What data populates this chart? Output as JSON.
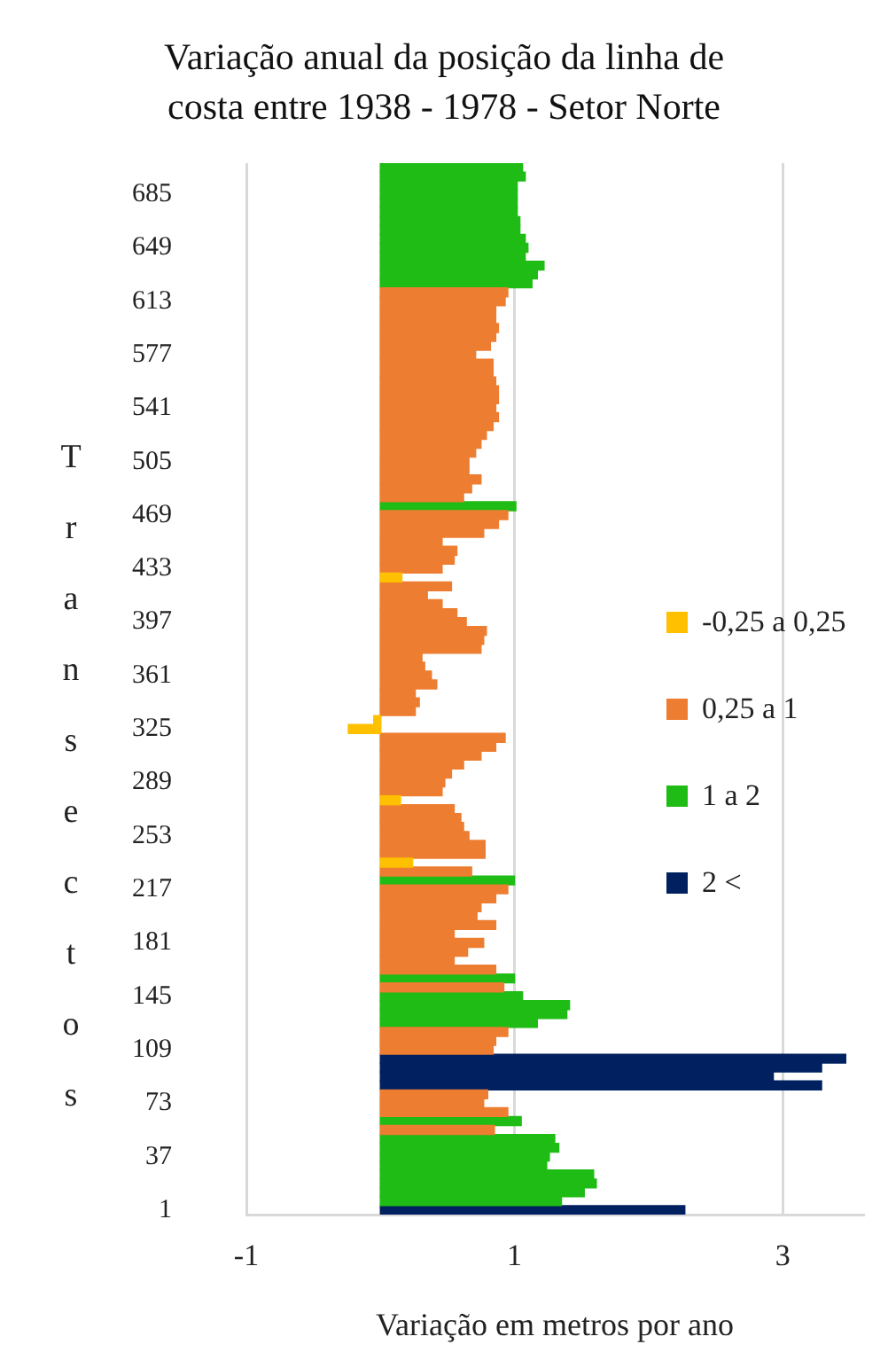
{
  "chart_data": {
    "type": "bar",
    "orientation": "horizontal",
    "stacked": true,
    "title": "Variação anual da posição da linha de costa entre 1938 - 1978 - Setor Norte",
    "xlabel": "Variação em metros por ano",
    "ylabel": "Transectos",
    "grid": "x",
    "legend": "right",
    "xlim": [
      -1,
      3.6
    ],
    "xticks": [
      -1,
      1,
      3
    ],
    "categories": [
      null,
      null,
      null,
      "685",
      null,
      null,
      null,
      null,
      null,
      "649",
      null,
      null,
      null,
      null,
      null,
      "613",
      null,
      null,
      null,
      null,
      null,
      "577",
      null,
      null,
      null,
      null,
      null,
      "541",
      null,
      null,
      null,
      null,
      null,
      "505",
      null,
      null,
      null,
      null,
      null,
      "469",
      null,
      null,
      null,
      null,
      null,
      "433",
      null,
      null,
      null,
      null,
      null,
      "397",
      null,
      null,
      null,
      null,
      null,
      "361",
      null,
      null,
      null,
      null,
      null,
      "325",
      null,
      null,
      null,
      null,
      null,
      "289",
      null,
      null,
      null,
      null,
      null,
      "253",
      null,
      null,
      null,
      null,
      null,
      "217",
      null,
      null,
      null,
      null,
      null,
      "181",
      null,
      null,
      null,
      null,
      null,
      "145",
      null,
      null,
      null,
      null,
      null,
      "109",
      null,
      null,
      null,
      null,
      null,
      "73",
      null,
      null,
      null,
      null,
      null,
      "37",
      null,
      null,
      null,
      null,
      null,
      "1"
    ],
    "series": [
      {
        "name": "-0,25 a 0,25",
        "color": "#ffc000",
        "values": [
          null,
          null,
          null,
          null,
          null,
          null,
          null,
          null,
          null,
          null,
          null,
          null,
          null,
          null,
          null,
          null,
          null,
          null,
          null,
          null,
          null,
          null,
          null,
          null,
          null,
          null,
          null,
          null,
          null,
          null,
          null,
          null,
          null,
          null,
          null,
          null,
          null,
          null,
          null,
          null,
          null,
          null,
          null,
          null,
          null,
          null,
          0.16,
          null,
          null,
          null,
          null,
          null,
          null,
          null,
          null,
          null,
          null,
          null,
          null,
          null,
          null,
          null,
          -0.05,
          -0.24,
          null,
          null,
          null,
          null,
          null,
          null,
          null,
          0.15,
          null,
          null,
          null,
          null,
          null,
          null,
          0.24,
          null,
          null,
          null,
          null,
          null,
          null,
          null,
          null,
          null,
          null,
          null,
          null,
          null,
          null,
          null,
          null,
          null,
          null,
          null,
          null,
          null,
          null,
          null,
          null,
          null,
          null,
          null,
          null,
          null,
          null,
          null,
          null,
          null,
          null,
          null,
          null,
          null,
          null,
          null
        ]
      },
      {
        "name": "0,25 a 1",
        "color": "#ed7d31",
        "values": [
          null,
          null,
          null,
          null,
          null,
          null,
          null,
          null,
          null,
          null,
          null,
          null,
          null,
          null,
          0.95,
          0.93,
          0.86,
          0.86,
          0.88,
          0.86,
          0.82,
          0.71,
          0.84,
          0.84,
          0.86,
          0.88,
          0.88,
          0.86,
          0.88,
          0.84,
          0.79,
          0.75,
          0.71,
          0.66,
          0.66,
          0.75,
          0.68,
          0.62,
          null,
          0.95,
          0.88,
          0.77,
          0.46,
          0.57,
          0.55,
          0.46,
          null,
          0.53,
          0.35,
          0.46,
          0.57,
          0.64,
          0.79,
          0.77,
          0.75,
          0.31,
          0.33,
          0.38,
          0.42,
          0.26,
          0.29,
          0.26,
          null,
          null,
          0.93,
          0.86,
          0.75,
          0.62,
          0.53,
          0.48,
          0.46,
          null,
          0.55,
          0.6,
          0.62,
          0.66,
          0.78,
          0.78,
          null,
          0.68,
          null,
          0.95,
          0.86,
          0.75,
          0.72,
          0.86,
          0.55,
          0.77,
          0.65,
          0.55,
          0.86,
          null,
          0.92,
          null,
          null,
          null,
          null,
          0.95,
          0.86,
          0.84,
          null,
          null,
          null,
          null,
          0.8,
          0.77,
          0.95,
          null,
          0.85,
          null,
          null,
          null,
          null,
          null,
          null,
          null,
          null,
          null
        ]
      },
      {
        "name": "1 a 2",
        "color": "#1ebc14",
        "values": [
          1.06,
          1.08,
          1.02,
          1.02,
          1.02,
          1.02,
          1.04,
          1.04,
          1.08,
          1.1,
          1.08,
          1.22,
          1.17,
          1.13,
          null,
          null,
          null,
          null,
          null,
          null,
          null,
          null,
          null,
          null,
          null,
          null,
          null,
          null,
          null,
          null,
          null,
          null,
          null,
          null,
          null,
          null,
          null,
          null,
          1.01,
          null,
          null,
          null,
          null,
          null,
          null,
          null,
          null,
          null,
          null,
          null,
          null,
          null,
          null,
          null,
          null,
          null,
          null,
          null,
          null,
          null,
          null,
          null,
          null,
          null,
          null,
          null,
          null,
          null,
          null,
          null,
          null,
          null,
          null,
          null,
          null,
          null,
          null,
          null,
          null,
          null,
          1.0,
          null,
          null,
          null,
          null,
          null,
          null,
          null,
          null,
          null,
          null,
          1.0,
          null,
          1.06,
          1.41,
          1.39,
          1.17,
          null,
          null,
          null,
          null,
          null,
          null,
          null,
          null,
          null,
          null,
          1.05,
          null,
          1.3,
          1.33,
          1.26,
          1.24,
          1.59,
          1.61,
          1.52,
          1.35,
          null
        ]
      },
      {
        "name": "2 <",
        "color": "#002060",
        "values": [
          null,
          null,
          null,
          null,
          null,
          null,
          null,
          null,
          null,
          null,
          null,
          null,
          null,
          null,
          null,
          null,
          null,
          null,
          null,
          null,
          null,
          null,
          null,
          null,
          null,
          null,
          null,
          null,
          null,
          null,
          null,
          null,
          null,
          null,
          null,
          null,
          null,
          null,
          null,
          null,
          null,
          null,
          null,
          null,
          null,
          null,
          null,
          null,
          null,
          null,
          null,
          null,
          null,
          null,
          null,
          null,
          null,
          null,
          null,
          null,
          null,
          null,
          null,
          null,
          null,
          null,
          null,
          null,
          null,
          null,
          null,
          null,
          null,
          null,
          null,
          null,
          null,
          null,
          null,
          null,
          null,
          null,
          null,
          null,
          null,
          null,
          null,
          null,
          null,
          null,
          null,
          null,
          null,
          null,
          null,
          null,
          null,
          null,
          null,
          null,
          3.47,
          3.29,
          2.93,
          3.29,
          null,
          null,
          null,
          null,
          null,
          null,
          null,
          null,
          null,
          null,
          null,
          null,
          null,
          2.27
        ]
      }
    ]
  }
}
